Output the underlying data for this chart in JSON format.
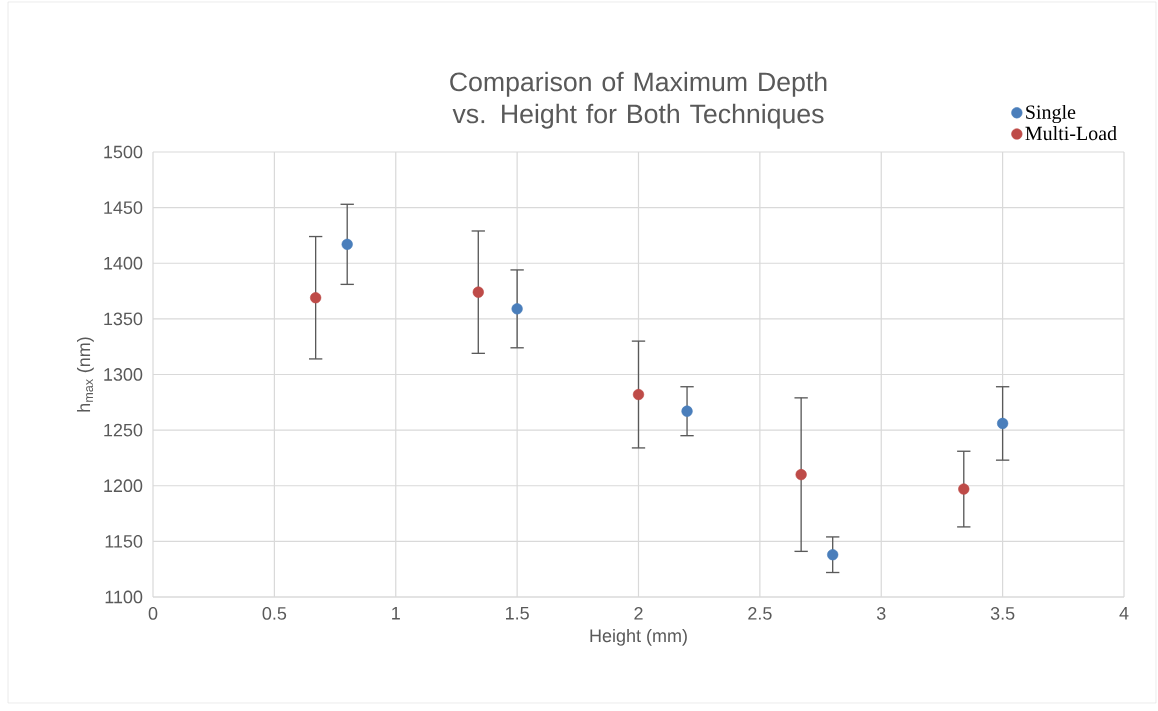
{
  "chart_data": {
    "type": "scatter",
    "title": "Comparison of Maximum Depth vs. Height for Both Techniques",
    "xlabel": "Height (mm)",
    "ylabel": "h$_{max}$ (nm)",
    "series": [
      {
        "name": "Single",
        "color": "#4a7ebb",
        "x": [
          0.8,
          1.5,
          2.2,
          2.8,
          3.5
        ],
        "values": [
          1417,
          1359,
          1267,
          1138,
          1256
        ],
        "errors": [
          36,
          35,
          22,
          16,
          33
        ]
      },
      {
        "name": "Multi-Load",
        "color": "#be4b48",
        "x": [
          0.67,
          1.34,
          2.0,
          2.67,
          3.34
        ],
        "values": [
          1369,
          1374,
          1282,
          1210,
          1197
        ],
        "errors": [
          55,
          55,
          48,
          69,
          34
        ]
      }
    ],
    "xlim": [
      0,
      4
    ],
    "ylim": [
      1100,
      1500
    ],
    "xticks": [
      0,
      0.5,
      1,
      1.5,
      2,
      2.5,
      3,
      3.5,
      4
    ],
    "yticks": [
      1100,
      1150,
      1200,
      1250,
      1300,
      1350,
      1400,
      1450,
      1500
    ],
    "grid": true,
    "legend": "top right",
    "marker": "circle"
  }
}
